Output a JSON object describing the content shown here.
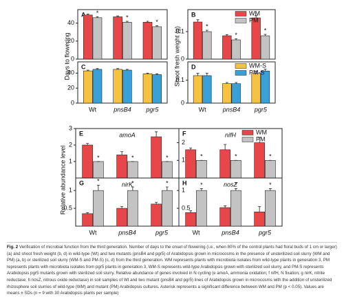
{
  "chart_data": [
    {
      "type": "bar",
      "letter": "A",
      "ylabel": "Days to flowering",
      "ylim": [
        0,
        55
      ],
      "yticks": [
        0,
        20,
        40
      ],
      "significance": [
        "*",
        "*",
        "*"
      ],
      "series": [
        {
          "color": "#e8474a",
          "values": [
            49,
            47,
            41
          ],
          "errors": [
            1,
            1,
            1
          ]
        },
        {
          "color": "#c3c3c3",
          "values": [
            46,
            41,
            36
          ],
          "errors": [
            1,
            1,
            1
          ]
        }
      ]
    },
    {
      "type": "bar",
      "letter": "B",
      "ylabel": "Shoot fresh weight (g)",
      "ylim": [
        0,
        0.18
      ],
      "yticks": [
        0,
        0.1
      ],
      "significance": [
        "*",
        "*",
        "*"
      ],
      "series": [
        {
          "name": "WM",
          "color": "#e8474a",
          "values": [
            0.135,
            0.085,
            0.15
          ],
          "errors": [
            0.008,
            0.004,
            0.008
          ]
        },
        {
          "name": "PM",
          "color": "#c3c3c3",
          "values": [
            0.1,
            0.07,
            0.085
          ],
          "errors": [
            0.005,
            0.004,
            0.005
          ]
        }
      ]
    },
    {
      "type": "bar",
      "letter": "C",
      "ylim": [
        0,
        55
      ],
      "yticks": [
        0,
        20,
        40
      ],
      "categories": [
        "Wt",
        "pnsB4",
        "pgr5"
      ],
      "series": [
        {
          "color": "#f5c242",
          "values": [
            43,
            45,
            39
          ],
          "errors": [
            1,
            1,
            1
          ]
        },
        {
          "color": "#3aa0d8",
          "values": [
            45,
            44,
            38
          ],
          "errors": [
            1,
            1,
            1
          ]
        }
      ]
    },
    {
      "type": "bar",
      "letter": "D",
      "ylim": [
        0,
        0.18
      ],
      "yticks": [
        0,
        0.1
      ],
      "categories": [
        "Wt",
        "pnsB4",
        "pgr5"
      ],
      "series": [
        {
          "name": "WM-S",
          "color": "#f5c242",
          "values": [
            0.12,
            0.085,
            0.13
          ],
          "errors": [
            0.01,
            0.005,
            0.01
          ]
        },
        {
          "name": "PM-S",
          "color": "#3aa0d8",
          "values": [
            0.12,
            0.085,
            0.14
          ],
          "errors": [
            0.01,
            0.005,
            0.008
          ]
        }
      ]
    },
    {
      "type": "bar",
      "letter": "E",
      "title": "amoA",
      "ylabel": "Relative abundance level",
      "ylim": [
        0,
        3
      ],
      "yticks": [
        1,
        2,
        3
      ],
      "significance": [
        "*",
        "*",
        "*"
      ],
      "series": [
        {
          "color": "#e8474a",
          "values": [
            2.0,
            1.4,
            2.5
          ],
          "errors": [
            0.1,
            0.2,
            0.3
          ]
        },
        {
          "color": "#c3c3c3",
          "values": [
            1,
            1,
            1
          ],
          "errors": [
            0,
            0,
            0
          ]
        }
      ]
    },
    {
      "type": "bar",
      "letter": "F",
      "title": "nifH",
      "ylim": [
        0,
        2.8
      ],
      "yticks": [
        1,
        2
      ],
      "significance": [
        "*",
        "*",
        "*"
      ],
      "series": [
        {
          "name": "WM",
          "color": "#e8474a",
          "values": [
            1.6,
            1.6,
            2.0
          ],
          "errors": [
            0.1,
            0.3,
            0.3
          ]
        },
        {
          "name": "PM",
          "color": "#c3c3c3",
          "values": [
            1,
            1,
            1
          ],
          "errors": [
            0,
            0,
            0
          ]
        }
      ]
    },
    {
      "type": "bar",
      "letter": "G",
      "title": "nirK",
      "ylim": [
        0,
        1.35
      ],
      "yticks": [
        0.5,
        1
      ],
      "categories": [
        "Wt",
        "pnsB4",
        "pgr5"
      ],
      "significance": [
        "*",
        "*",
        "*"
      ],
      "series": [
        {
          "color": "#e8474a",
          "values": [
            0.35,
            0.5,
            0.62
          ],
          "errors": [
            0.03,
            0.05,
            0.05
          ]
        },
        {
          "color": "#c3c3c3",
          "values": [
            1,
            1,
            1
          ],
          "errors": [
            0.15,
            0.1,
            0.1
          ]
        }
      ]
    },
    {
      "type": "bar",
      "letter": "H",
      "title": "nosZ",
      "ylim": [
        0,
        1.35
      ],
      "yticks": [
        0.5,
        1
      ],
      "categories": [
        "Wt",
        "pnsB4",
        "pgr5"
      ],
      "significance": [
        "*",
        "*",
        "*"
      ],
      "series": [
        {
          "color": "#e8474a",
          "values": [
            0.38,
            0.52,
            0.4
          ],
          "errors": [
            0.05,
            0.05,
            0.15
          ]
        },
        {
          "color": "#c3c3c3",
          "values": [
            1,
            1,
            1
          ],
          "errors": [
            0.05,
            0.05,
            0.05
          ]
        }
      ]
    }
  ],
  "caption": {
    "label": "Fig. 2",
    "text": "Verification of microbial function from the third generation. Number of days to the onset of flowering (i.e., when 80% of the control plants had floral buds of 1 cm or larger) (a) and shoot fresh weight (b, d) in wild-type (Wt) and two mutants (pnsB4 and pgr5) of Arabidopsis grown in microcosms in the presence of unsterilized soil slurry (WM and PM) (a, b) or sterilized soil slurry (WM-S and PM-S) (c, d) from the third generation. WM represents plants with microbiota isolates from wild-type plants in generation 3, PM represents plants with microbiota isolates from pgr5 plants in generation 3, WM-S represents wild-type Arabidopsis grown with sterilized soil slurry, and PM-S represents Arabidopsis pgr5 mutants grown with sterilized soil slurry. Relative abundance of genes involved in N cycling (e amoA, ammonia oxidation; f nifH, N fixation; g nirK, nitrite reductase; h nosZ, nitrous oxide reductase) in soil samples of Wt and two mutant (pnsB4 and pgr5) lines of Arabidopsis grown in microcosms with the addition of unsterilized rhizosphere soil slurries of wild-type (WM) and mutant (PM) Arabidopsis cultures. Asterisk represents a significant difference between WM and PM (p < 0.05). Values are means ± SDs (n = 9 with 30 Arabidopsis plants per sample)"
  }
}
